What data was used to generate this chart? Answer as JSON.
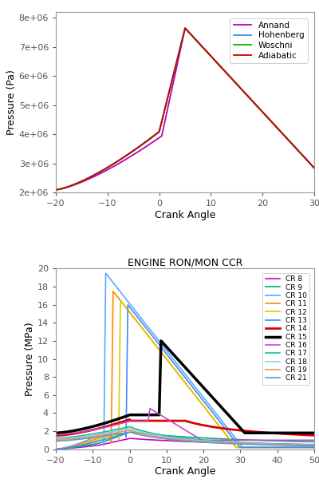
{
  "top": {
    "xlim": [
      -20,
      30
    ],
    "ylim": [
      2000000.0,
      8200000.0
    ],
    "xlabel": "Crank Angle",
    "ylabel": "Pressure (Pa)",
    "yticks": [
      2000000.0,
      3000000.0,
      4000000.0,
      5000000.0,
      6000000.0,
      7000000.0,
      8000000.0
    ],
    "ytick_labels": [
      "2e+06",
      "3e+06",
      "4e+06",
      "5e+06",
      "6e+06",
      "7e+06",
      "8e+06"
    ],
    "legend": [
      {
        "label": "Adiabatic",
        "color": "#cc0000"
      },
      {
        "label": "Woschni",
        "color": "#00bb00"
      },
      {
        "label": "Hohenberg",
        "color": "#4488ff"
      },
      {
        "label": "Annand",
        "color": "#bb00bb"
      }
    ]
  },
  "bottom": {
    "title": "ENGINE RON/MON CCR",
    "xlim": [
      -20,
      50
    ],
    "ylim": [
      0,
      20
    ],
    "xlabel": "Crank Angle",
    "ylabel": "Pressure (MPa)",
    "yticks": [
      0,
      2,
      4,
      6,
      8,
      10,
      12,
      14,
      16,
      18,
      20
    ],
    "legend": [
      {
        "label": "CR 8",
        "color": "#cc00cc",
        "lw": 1.2
      },
      {
        "label": "CR 9",
        "color": "#00aa88",
        "lw": 1.2
      },
      {
        "label": "CR 10",
        "color": "#55aaff",
        "lw": 1.2
      },
      {
        "label": "CR 11",
        "color": "#ff8800",
        "lw": 1.2
      },
      {
        "label": "CR 12",
        "color": "#ddcc00",
        "lw": 1.2
      },
      {
        "label": "CR 13",
        "color": "#4488ff",
        "lw": 1.2
      },
      {
        "label": "CR 14",
        "color": "#dd0000",
        "lw": 2.0
      },
      {
        "label": "CR 15",
        "color": "#000000",
        "lw": 2.5
      },
      {
        "label": "CR 16",
        "color": "#cc44cc",
        "lw": 1.2
      },
      {
        "label": "CR 17",
        "color": "#22bb88",
        "lw": 1.2
      },
      {
        "label": "CR 18",
        "color": "#88ccff",
        "lw": 1.2
      },
      {
        "label": "CR 19",
        "color": "#ee9955",
        "lw": 1.2
      },
      {
        "label": "CR 21",
        "color": "#6699bb",
        "lw": 1.2
      }
    ]
  }
}
